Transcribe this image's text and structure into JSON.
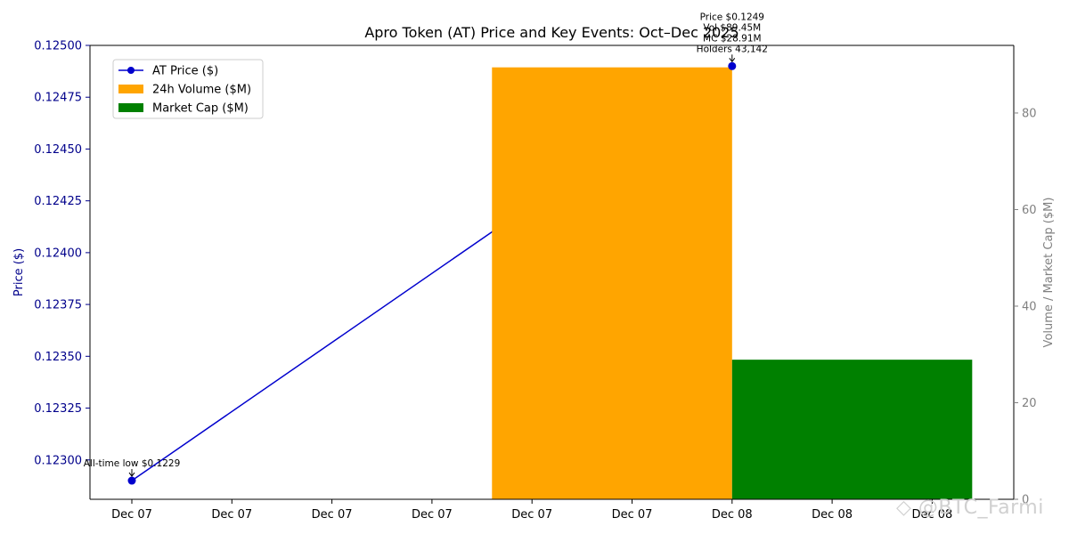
{
  "chart_data": {
    "type": "line",
    "title": "Apro Token (AT) Price and Key Events: Oct–Dec 2025",
    "x_tick_labels": [
      "Dec 07",
      "Dec 07",
      "Dec 07",
      "Dec 07",
      "Dec 07",
      "Dec 07",
      "Dec 08",
      "Dec 08",
      "Dec 08"
    ],
    "left_axis": {
      "label": "Price ($)",
      "ylim": [
        0.12281,
        0.125
      ],
      "ticks": [
        "0.12300",
        "0.12325",
        "0.12350",
        "0.12375",
        "0.12400",
        "0.12425",
        "0.12450",
        "0.12475",
        "0.12500"
      ],
      "color": "#00008b"
    },
    "right_axis": {
      "label": "Volume / Market Cap ($M)",
      "ylim": [
        0,
        94
      ],
      "ticks": [
        "0",
        "20",
        "40",
        "60",
        "80"
      ],
      "color": "#808080"
    },
    "series": [
      {
        "name": "AT Price ($)",
        "kind": "line",
        "axis": "left",
        "color": "#0000cd",
        "x": [
          0,
          6
        ],
        "values": [
          0.1229,
          0.1249
        ]
      },
      {
        "name": "24h Volume ($M)",
        "kind": "bar",
        "axis": "right",
        "color": "#ffa500",
        "x_start": 3.6,
        "x_end": 6,
        "value": 89.45
      },
      {
        "name": "Market Cap ($M)",
        "kind": "bar",
        "axis": "right",
        "color": "#008000",
        "x_start": 6,
        "x_end": 8.4,
        "value": 28.91
      }
    ],
    "annotations": [
      {
        "lines": [
          "All-time low $0.1229"
        ],
        "x": 0,
        "y": 0.1229
      },
      {
        "lines": [
          "Price $0.1249",
          "Vol $89.45M",
          "MC $28.91M",
          "Holders 43,142"
        ],
        "x": 6,
        "y": 0.1249
      }
    ],
    "legend": {
      "position": "top-left",
      "items": [
        {
          "label": "AT Price ($)",
          "swatch": "line",
          "color": "#0000cd"
        },
        {
          "label": "24h Volume ($M)",
          "swatch": "bar",
          "color": "#ffa500"
        },
        {
          "label": "Market Cap ($M)",
          "swatch": "bar",
          "color": "#008000"
        }
      ]
    },
    "grid": false
  },
  "watermark": "@BTC_Farmi"
}
